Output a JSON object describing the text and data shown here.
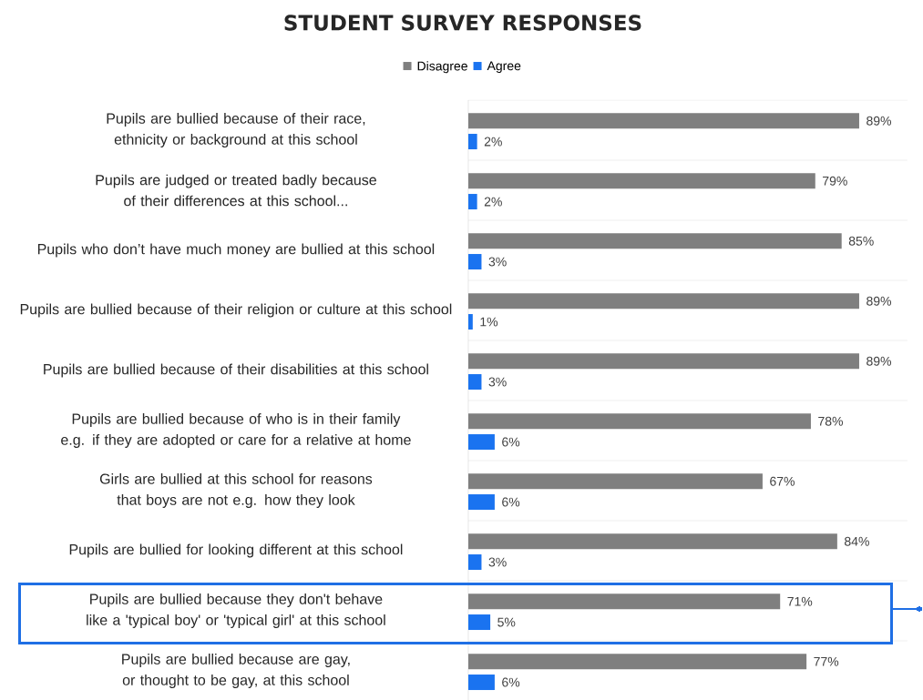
{
  "chart_data": {
    "type": "bar",
    "orientation": "horizontal",
    "title": "STUDENT SURVEY RESPONSES",
    "categories": [
      "Pupils are bullied because of their race, ethnicity or background at this school",
      "Pupils are judged or treated badly because of their differences at this school...",
      "Pupils who don’t have much money are bullied at this school",
      "Pupils are bullied because of their religion or culture at this school",
      "Pupils are bullied because of their disabilities at this school",
      "Pupils are bullied because of who is in their family e.g. if they are adopted or care for a relative at home",
      "Girls are bullied at this school for reasons that boys are not e.g. how they look",
      "Pupils are bullied for looking different at this school",
      "Pupils are bullied because they don't behave like a 'typical boy' or 'typical girl' at this school",
      "Pupils are bullied because are gay, or thought to be gay, at this school"
    ],
    "series": [
      {
        "name": "Disagree",
        "color": "#7f7f7f",
        "values": [
          89,
          79,
          85,
          89,
          89,
          78,
          67,
          84,
          71,
          77
        ],
        "value_labels": [
          "89%",
          "79%",
          "85%",
          "89%",
          "89%",
          "78%",
          "67%",
          "84%",
          "71%",
          "77%"
        ]
      },
      {
        "name": "Agree",
        "color": "#1a73f0",
        "values": [
          2,
          2,
          3,
          1,
          3,
          6,
          6,
          3,
          5,
          6
        ],
        "value_labels": [
          "2%",
          "2%",
          "3%",
          "1%",
          "3%",
          "6%",
          "6%",
          "3%",
          "5%",
          "6%"
        ]
      }
    ],
    "xlim": [
      0,
      100
    ],
    "grid": "y",
    "legend": "top",
    "tick_labels": "y"
  }
}
